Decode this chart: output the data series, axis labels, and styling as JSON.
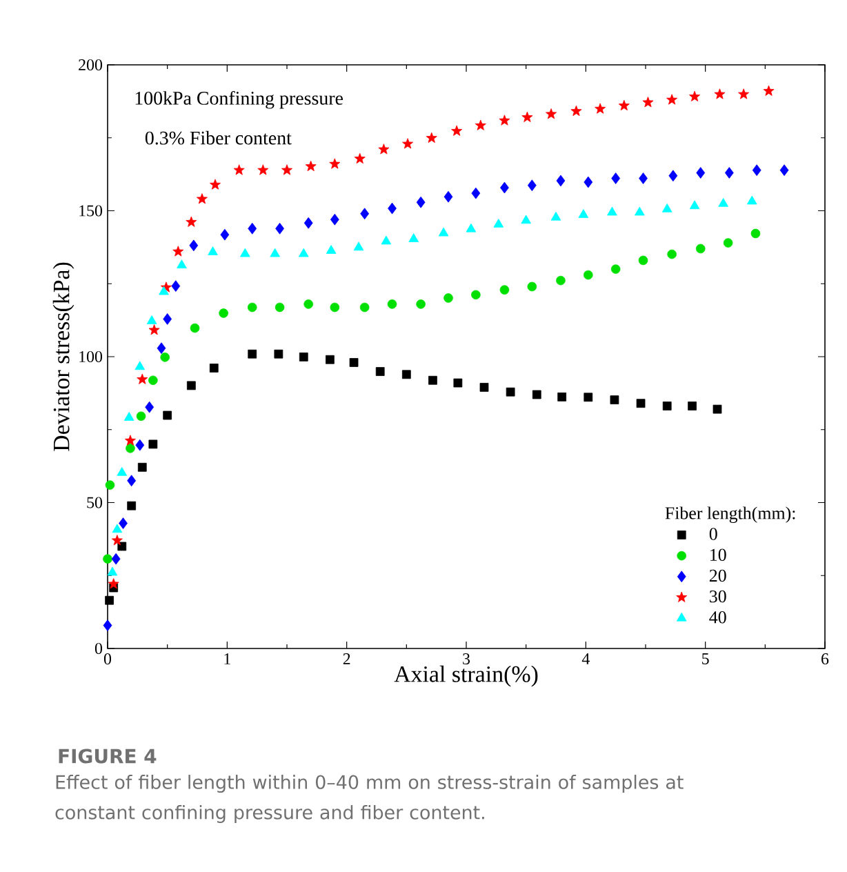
{
  "chart_data": {
    "type": "scatter",
    "xlabel": "Axial strain(%)",
    "ylabel": "Deviator stress(kPa)",
    "legend_title": "Fiber length(mm):",
    "xlim": [
      0,
      6
    ],
    "ylim": [
      0,
      200
    ],
    "xticks": [
      0,
      1,
      2,
      3,
      4,
      5,
      6
    ],
    "yticks": [
      0,
      50,
      100,
      150,
      200
    ],
    "grid": false,
    "legend": "bottom right",
    "annotations": [
      "100kPa  Confining pressure",
      "0.3%   Fiber content",
      "FIGURE 4",
      "Effect of fiber length within 0–40 mm on stress-strain of samples at constant confining pressure and fiber content."
    ],
    "series": [
      {
        "name": "0",
        "color": "#000000",
        "marker": "square",
        "x": [
          0.015,
          0.05,
          0.12,
          0.2,
          0.29,
          0.38,
          0.5,
          0.7,
          0.89,
          1.21,
          1.43,
          1.64,
          1.86,
          2.06,
          2.28,
          2.5,
          2.72,
          2.93,
          3.15,
          3.37,
          3.59,
          3.8,
          4.02,
          4.24,
          4.46,
          4.68,
          4.89,
          5.1
        ],
        "values": [
          16.5,
          20.8,
          35,
          48.9,
          62.1,
          70,
          79.9,
          90.1,
          96.1,
          100.9,
          100.9,
          99.9,
          99,
          98,
          94.9,
          93.9,
          91.9,
          91,
          89.5,
          87.9,
          87,
          86.2,
          86.1,
          85.2,
          84,
          83.1,
          83.1,
          82
        ]
      },
      {
        "name": "10",
        "color": "#00e000",
        "marker": "circle",
        "x": [
          0,
          0.02,
          0.19,
          0.28,
          0.38,
          0.48,
          0.73,
          0.97,
          1.21,
          1.44,
          1.68,
          1.9,
          2.15,
          2.38,
          2.62,
          2.85,
          3.08,
          3.32,
          3.55,
          3.79,
          4.02,
          4.25,
          4.48,
          4.72,
          4.96,
          5.19,
          5.42
        ],
        "values": [
          30.7,
          56,
          68.6,
          79.6,
          91.9,
          99.8,
          109.8,
          114.9,
          116.9,
          116.9,
          118,
          116.9,
          116.9,
          118,
          118,
          120.1,
          121.2,
          122.9,
          124,
          126.1,
          128,
          130,
          133,
          135.1,
          137,
          139,
          142.2
        ]
      },
      {
        "name": "20",
        "color": "#0000ff",
        "marker": "diamond",
        "x": [
          0,
          0.07,
          0.13,
          0.2,
          0.27,
          0.35,
          0.45,
          0.5,
          0.57,
          0.72,
          0.98,
          1.21,
          1.44,
          1.68,
          1.9,
          2.15,
          2.38,
          2.62,
          2.85,
          3.08,
          3.32,
          3.55,
          3.79,
          4.02,
          4.25,
          4.48,
          4.73,
          4.96,
          5.2,
          5.43,
          5.66
        ],
        "values": [
          7.9,
          30.7,
          42.9,
          57.5,
          69.7,
          82.7,
          102.9,
          112.9,
          124.2,
          138.1,
          141.8,
          143.9,
          143.9,
          145.8,
          147,
          149,
          150.8,
          152.9,
          154.8,
          156,
          157.9,
          158.7,
          160.3,
          159.8,
          161.1,
          161.1,
          162,
          163,
          163,
          163.9,
          163.9
        ]
      },
      {
        "name": "30",
        "color": "#ff0000",
        "marker": "star",
        "x": [
          0.05,
          0.08,
          0.19,
          0.29,
          0.39,
          0.49,
          0.59,
          0.7,
          0.79,
          0.9,
          1.1,
          1.3,
          1.5,
          1.7,
          1.9,
          2.11,
          2.31,
          2.51,
          2.71,
          2.92,
          3.12,
          3.32,
          3.51,
          3.71,
          3.92,
          4.12,
          4.32,
          4.52,
          4.72,
          4.91,
          5.12,
          5.32,
          5.53
        ],
        "values": [
          22.1,
          37,
          71.2,
          92.2,
          109.1,
          123.7,
          136,
          146.1,
          154,
          158.9,
          163.9,
          163.9,
          163.9,
          165.2,
          166,
          167.8,
          171,
          172.9,
          174.9,
          177.3,
          179.2,
          180.9,
          182,
          183.1,
          184.1,
          184.9,
          186,
          187.1,
          188,
          189.1,
          189.9,
          189.9,
          191
        ]
      },
      {
        "name": "40",
        "color": "#00ffff",
        "marker": "triangle",
        "x": [
          0.04,
          0.08,
          0.12,
          0.18,
          0.27,
          0.37,
          0.47,
          0.62,
          0.88,
          1.15,
          1.4,
          1.64,
          1.87,
          2.1,
          2.33,
          2.56,
          2.81,
          3.04,
          3.27,
          3.5,
          3.75,
          3.98,
          4.22,
          4.45,
          4.68,
          4.91,
          5.15,
          5.39
        ],
        "values": [
          26,
          40.7,
          60.2,
          79.1,
          96.5,
          112.2,
          122.2,
          131.3,
          135.8,
          135.2,
          135.2,
          135.2,
          136.3,
          137.4,
          139.5,
          140.3,
          142.3,
          143.7,
          145.3,
          146.6,
          147.7,
          148.6,
          149.4,
          149.4,
          150.5,
          151.6,
          152.4,
          153.2
        ]
      }
    ]
  }
}
